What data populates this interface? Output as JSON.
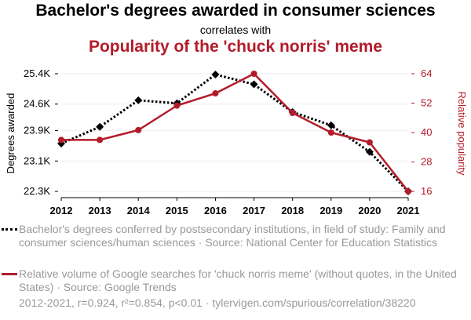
{
  "header": {
    "title": "Bachelor's degrees awarded in consumer sciences",
    "connector": "correlates with",
    "subtitle": "Popularity of the 'chuck norris' meme"
  },
  "legend": {
    "series_a": "Bachelor's degrees conferred by postsecondary institutions, in field of study: Family and consumer sciences/human sciences · Source: National Center for Education Statistics",
    "series_b": "Relative volume of Google searches for 'chuck norris meme' (without quotes, in the United States) · Source: Google Trends"
  },
  "footer": "2012-2021, r=0.924, r²=0.854, p<0.01 · tylervigen.com/spurious/correlation/38220",
  "chart_data": {
    "type": "line",
    "x": [
      2012,
      2013,
      2014,
      2015,
      2016,
      2017,
      2018,
      2019,
      2020,
      2021
    ],
    "left_axis": {
      "label": "Degrees awarded",
      "ticks": [
        22300,
        23100,
        23900,
        24600,
        25400
      ],
      "tick_labels": [
        "22.3K",
        "23.1K",
        "23.9K",
        "24.6K",
        "25.4K"
      ],
      "ylim": [
        22300,
        25400
      ],
      "color": "#000000"
    },
    "right_axis": {
      "label": "Relative popularity",
      "ticks": [
        16,
        28,
        40,
        52,
        64
      ],
      "tick_labels": [
        "16",
        "28",
        "40",
        "52",
        "64"
      ],
      "ylim": [
        16,
        64
      ],
      "color": "#b31b2a"
    },
    "series": [
      {
        "axis": "left",
        "style": "dotted",
        "marker": "diamond",
        "color": "#000000",
        "values": [
          23560,
          24000,
          24700,
          24620,
          25380,
          25120,
          24390,
          24040,
          23340,
          22300
        ]
      },
      {
        "axis": "right",
        "style": "solid",
        "marker": "circle",
        "color": "#b31b2a",
        "values": [
          37,
          37,
          41,
          51,
          56,
          64,
          48,
          40,
          36,
          16
        ]
      }
    ],
    "grid": true
  }
}
